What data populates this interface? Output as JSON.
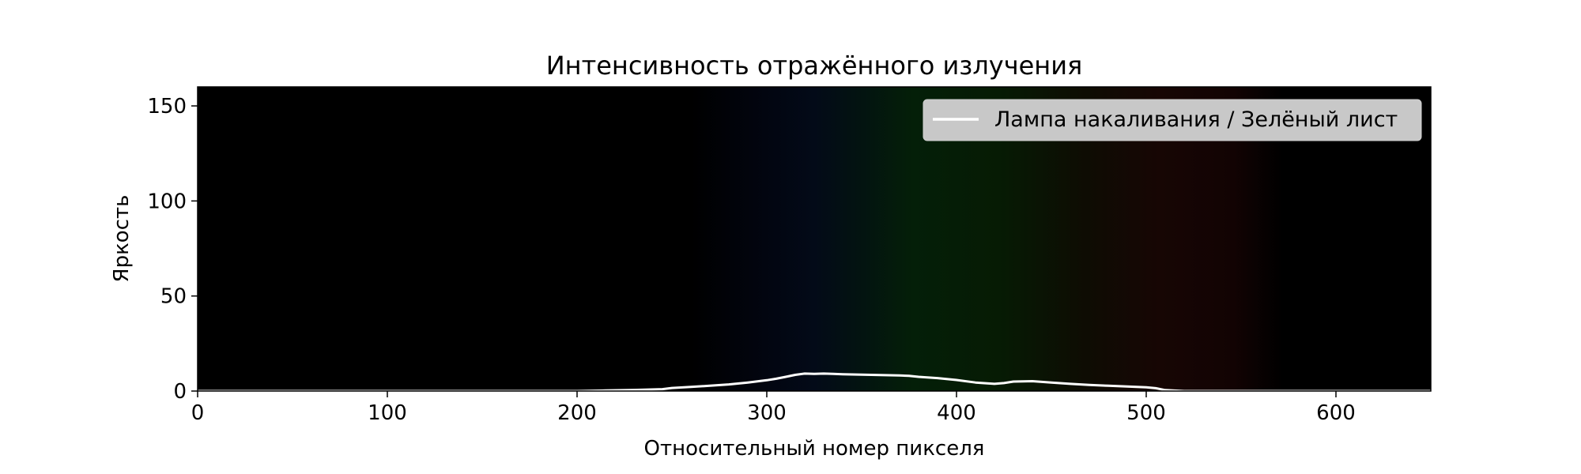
{
  "chart_data": {
    "type": "line",
    "title": "Интенсивность отражённого излучения",
    "xlabel": "Относительный номер пикселя",
    "ylabel": "Яркость",
    "xlim": [
      0,
      650
    ],
    "ylim": [
      0,
      160
    ],
    "xticks": [
      0,
      100,
      200,
      300,
      400,
      500,
      600
    ],
    "yticks": [
      0,
      50,
      100,
      150
    ],
    "grid": false,
    "legend_position": "top-right",
    "background": "spectrum",
    "colors": {
      "line": "#ffffff",
      "plot_background": "#000000",
      "legend_box": "#c8c8c8"
    },
    "series": [
      {
        "name": "Лампа накаливания / Зелёный лист",
        "x": [
          0,
          100,
          200,
          215,
          230,
          245,
          250,
          260,
          270,
          280,
          290,
          300,
          305,
          310,
          315,
          320,
          325,
          330,
          335,
          340,
          350,
          360,
          370,
          375,
          380,
          390,
          400,
          410,
          420,
          425,
          430,
          440,
          450,
          460,
          470,
          480,
          490,
          500,
          505,
          510,
          520,
          560,
          600,
          650
        ],
        "y": [
          0,
          0,
          0,
          0.3,
          0.6,
          1.0,
          1.6,
          2.2,
          2.8,
          3.5,
          4.5,
          5.7,
          6.5,
          7.5,
          8.5,
          9.2,
          9.0,
          9.2,
          9.0,
          8.8,
          8.6,
          8.4,
          8.2,
          8.0,
          7.5,
          6.8,
          5.8,
          4.5,
          3.8,
          4.2,
          5.0,
          5.2,
          4.5,
          3.8,
          3.2,
          2.8,
          2.4,
          2.0,
          1.5,
          0.5,
          0,
          0,
          0,
          0
        ]
      }
    ]
  }
}
